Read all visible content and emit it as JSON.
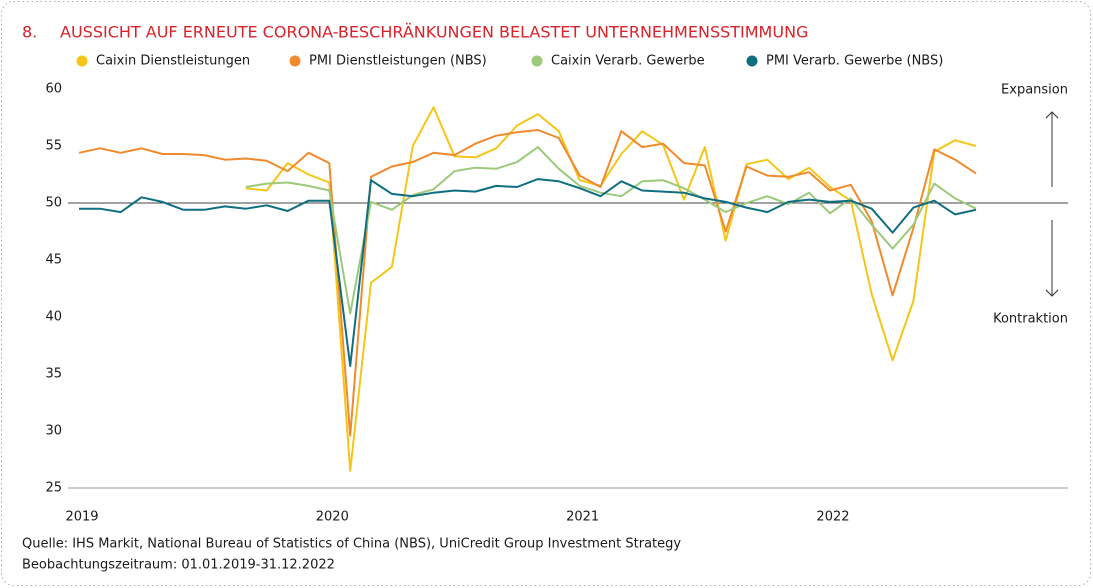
{
  "chart_data": {
    "type": "line",
    "number": "8.",
    "title": "AUSSICHT AUF ERNEUTE CORONA-BESCHRÄNKUNGEN BELASTET UNTERNEHMENSSTIMMUNG",
    "categories": [
      "2019",
      null,
      null,
      null,
      null,
      null,
      null,
      null,
      null,
      null,
      null,
      null,
      "2020",
      null,
      null,
      null,
      null,
      null,
      null,
      null,
      null,
      null,
      null,
      null,
      "2021",
      null,
      null,
      null,
      null,
      null,
      null,
      null,
      null,
      null,
      null,
      null,
      "2022",
      null,
      null,
      null,
      null,
      null,
      null,
      null
    ],
    "series": [
      {
        "name": "Caixin Dienstleistungen",
        "color": "#f5c518",
        "values": [
          null,
          null,
          null,
          null,
          null,
          null,
          null,
          null,
          51.3,
          51.1,
          53.5,
          52.5,
          51.8,
          26.5,
          43.0,
          44.4,
          55.0,
          58.4,
          54.1,
          54.0,
          54.8,
          56.8,
          57.8,
          56.3,
          52.0,
          51.5,
          54.3,
          56.3,
          55.1,
          50.3,
          54.9,
          46.7,
          53.4,
          53.8,
          52.1,
          53.1,
          51.4,
          50.2,
          42.0,
          36.2,
          41.4,
          54.5,
          55.5,
          55.0
        ]
      },
      {
        "name": "PMI Dienstleistungen (NBS)",
        "color": "#f08a2c",
        "values": [
          54.4,
          54.8,
          54.4,
          54.8,
          54.3,
          54.3,
          54.2,
          53.8,
          53.9,
          53.7,
          52.8,
          54.4,
          53.5,
          29.6,
          52.3,
          53.2,
          53.6,
          54.4,
          54.2,
          55.2,
          55.9,
          56.2,
          56.4,
          55.7,
          52.4,
          51.4,
          56.3,
          54.9,
          55.2,
          53.5,
          53.3,
          47.5,
          53.2,
          52.4,
          52.3,
          52.7,
          51.1,
          51.6,
          48.4,
          41.9,
          47.8,
          54.7,
          53.8,
          52.6
        ]
      },
      {
        "name": "Caixin Verarb. Gewerbe",
        "color": "#9cc97a",
        "values": [
          null,
          null,
          null,
          null,
          null,
          null,
          null,
          null,
          51.4,
          51.7,
          51.8,
          51.5,
          51.1,
          40.3,
          50.1,
          49.4,
          50.7,
          51.2,
          52.8,
          53.1,
          53.0,
          53.6,
          54.9,
          53.0,
          51.5,
          50.9,
          50.6,
          51.9,
          52.0,
          51.3,
          50.3,
          49.2,
          50.0,
          50.6,
          49.9,
          50.9,
          49.1,
          50.4,
          48.1,
          46.0,
          48.1,
          51.7,
          50.4,
          49.5
        ]
      },
      {
        "name": "PMI Verarb. Gewerbe (NBS)",
        "color": "#0f6e80",
        "values": [
          49.5,
          49.5,
          49.2,
          50.5,
          50.1,
          49.4,
          49.4,
          49.7,
          49.5,
          49.8,
          49.3,
          50.2,
          50.2,
          35.7,
          52.0,
          50.8,
          50.6,
          50.9,
          51.1,
          51.0,
          51.5,
          51.4,
          52.1,
          51.9,
          51.3,
          50.6,
          51.9,
          51.1,
          51.0,
          50.9,
          50.4,
          50.1,
          49.6,
          49.2,
          50.1,
          50.3,
          50.1,
          50.2,
          49.5,
          47.4,
          49.6,
          50.2,
          49.0,
          49.4
        ]
      }
    ],
    "ylim": [
      25,
      60
    ],
    "yticks": [
      25,
      30,
      35,
      40,
      45,
      50,
      55,
      60
    ],
    "reference_line": 50,
    "annotations": [
      "Expansion",
      "Kontraktion"
    ],
    "source": "Quelle: IHS Markit, National Bureau of Statistics of China (NBS), UniCredit Group Investment Strategy",
    "period": "Beobachtungszeitraum: 01.01.2019-31.12.2022"
  }
}
